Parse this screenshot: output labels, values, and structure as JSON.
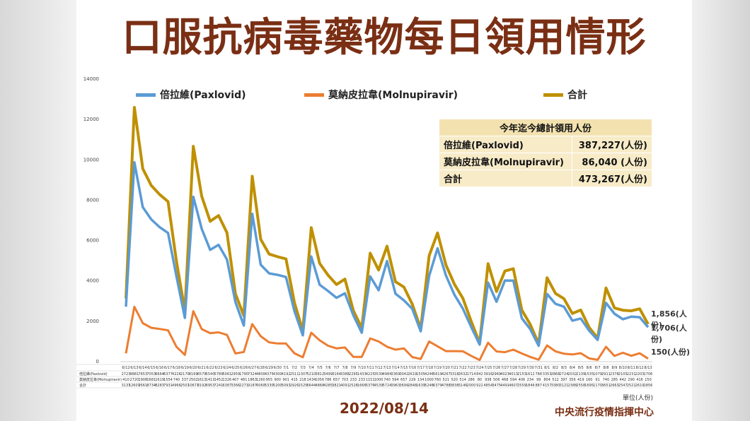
{
  "title": "口服抗病毒藥物每日領用情形",
  "date_label": "2022/08/14",
  "source_label": "中央流行疫情指揮中心",
  "unit_label": "單位(人份)",
  "table_rows": [
    "倍拉維(Paxlovid)",
    "莫納皮拉韋(Molnupiravir)",
    "合計"
  ],
  "totals_table": {
    "header": "今年迄今總計領用人份",
    "rows": [
      {
        "label": "倍拉維(Paxlovid)",
        "value": "387,227(人份)"
      },
      {
        "label": "莫納皮拉韋(Molnupiravir)",
        "value": "86,040 (人份)"
      },
      {
        "label": "合計",
        "value": "473,267(人份)"
      }
    ]
  },
  "end_labels": {
    "total": "1,856(人份)",
    "paxlovid": "1,706(人份)",
    "molnupiravir": "150(人份)"
  },
  "colors": {
    "paxlovid": "#5b9bd5",
    "molnupiravir": "#ed7d31",
    "total": "#bf9000",
    "title": "#7a2f14"
  },
  "chart_data": {
    "type": "line",
    "title": "口服抗病毒藥物每日領用情形",
    "xlabel": "",
    "ylabel": "",
    "ylim": [
      0,
      14000
    ],
    "yticks": [
      0,
      2000,
      4000,
      6000,
      8000,
      10000,
      12000,
      14000
    ],
    "grid": false,
    "legend_position": "top",
    "x": [
      "6/12",
      "6/13",
      "6/14",
      "6/15",
      "6/16",
      "6/17",
      "6/18",
      "6/19",
      "6/20",
      "6/21",
      "6/22",
      "6/23",
      "6/24",
      "6/25",
      "6/26",
      "6/27",
      "6/28",
      "6/29",
      "6/30",
      "7/1",
      "7/2",
      "7/3",
      "7/4",
      "7/5",
      "7/6",
      "7/7",
      "7/8",
      "7/9",
      "7/10",
      "7/11",
      "7/12",
      "7/13",
      "7/14",
      "7/15",
      "7/16",
      "7/17",
      "7/18",
      "7/19",
      "7/20",
      "7/21",
      "7/22",
      "7/23",
      "7/24",
      "7/25",
      "7/26",
      "7/27",
      "7/28",
      "7/29",
      "7/30",
      "7/31",
      "8/1",
      "8/2",
      "8/3",
      "8/4",
      "8/5",
      "8/6",
      "8/7",
      "8/8",
      "8/9",
      "8/10",
      "8/11",
      "8/12",
      "8/13"
    ],
    "series": [
      {
        "name": "倍拉維(Paxlovid)",
        "values": [
          2723,
          9881,
          7653,
          7053,
          6664,
          6377,
          4226,
          2170,
          8169,
          6579,
          5540,
          5789,
          5061,
          2959,
          1790,
          7324,
          4800,
          4375,
          4300,
          4192,
          2511,
          1307,
          5210,
          3812,
          3499,
          3164,
          3388,
          2295,
          1433,
          4225,
          3539,
          4984,
          3369,
          3042,
          2619,
          1505,
          4246,
          5619,
          4267,
          3318,
          2632,
          1714,
          842,
          3916,
          2969,
          4023,
          4013,
          2153,
          1612,
          788,
          3353,
          2868,
          2724,
          2032,
          2139,
          1535,
          1079,
          2911,
          2378,
          2105,
          2231,
          2203,
          1706
        ]
      },
      {
        "name": "莫納皮拉韋(Molnupiravir)",
        "values": [
          410,
          2720,
          1908,
          1681,
          1619,
          1554,
          740,
          337,
          2502,
          1613,
          1413,
          1452,
          1326,
          407,
          481,
          1863,
          1260,
          955,
          900,
          901,
          415,
          218,
          1434,
          1056,
          786,
          657,
          703,
          233,
          233,
          1151,
          1000,
          740,
          594,
          657,
          229,
          134,
          1000,
          760,
          521,
          520,
          514,
          286,
          80,
          938,
          506,
          468,
          594,
          406,
          234,
          99,
          804,
          512,
          397,
          356,
          419,
          160,
          91,
          740,
          285,
          442,
          290,
          416,
          150
        ]
      },
      {
        "name": "合計",
        "values": [
          3133,
          12601,
          9561,
          8734,
          8283,
          7931,
          4966,
          2507,
          10671,
          8192,
          6953,
          7241,
          6387,
          3366,
          2271,
          9187,
          6060,
          5330,
          5200,
          5093,
          2926,
          1525,
          6644,
          4868,
          4285,
          3821,
          4091,
          2528,
          1666,
          5376,
          4539,
          5724,
          3963,
          3699,
          2848,
          1639,
          5246,
          6379,
          4788,
          3838,
          3146,
          2000,
          922,
          4854,
          3475,
          4491,
          4607,
          2559,
          1846,
          887,
          4157,
          3380,
          3121,
          2388,
          2558,
          1695,
          1170,
          3651,
          2663,
          2547,
          2521,
          2619,
          1856
        ]
      }
    ]
  }
}
